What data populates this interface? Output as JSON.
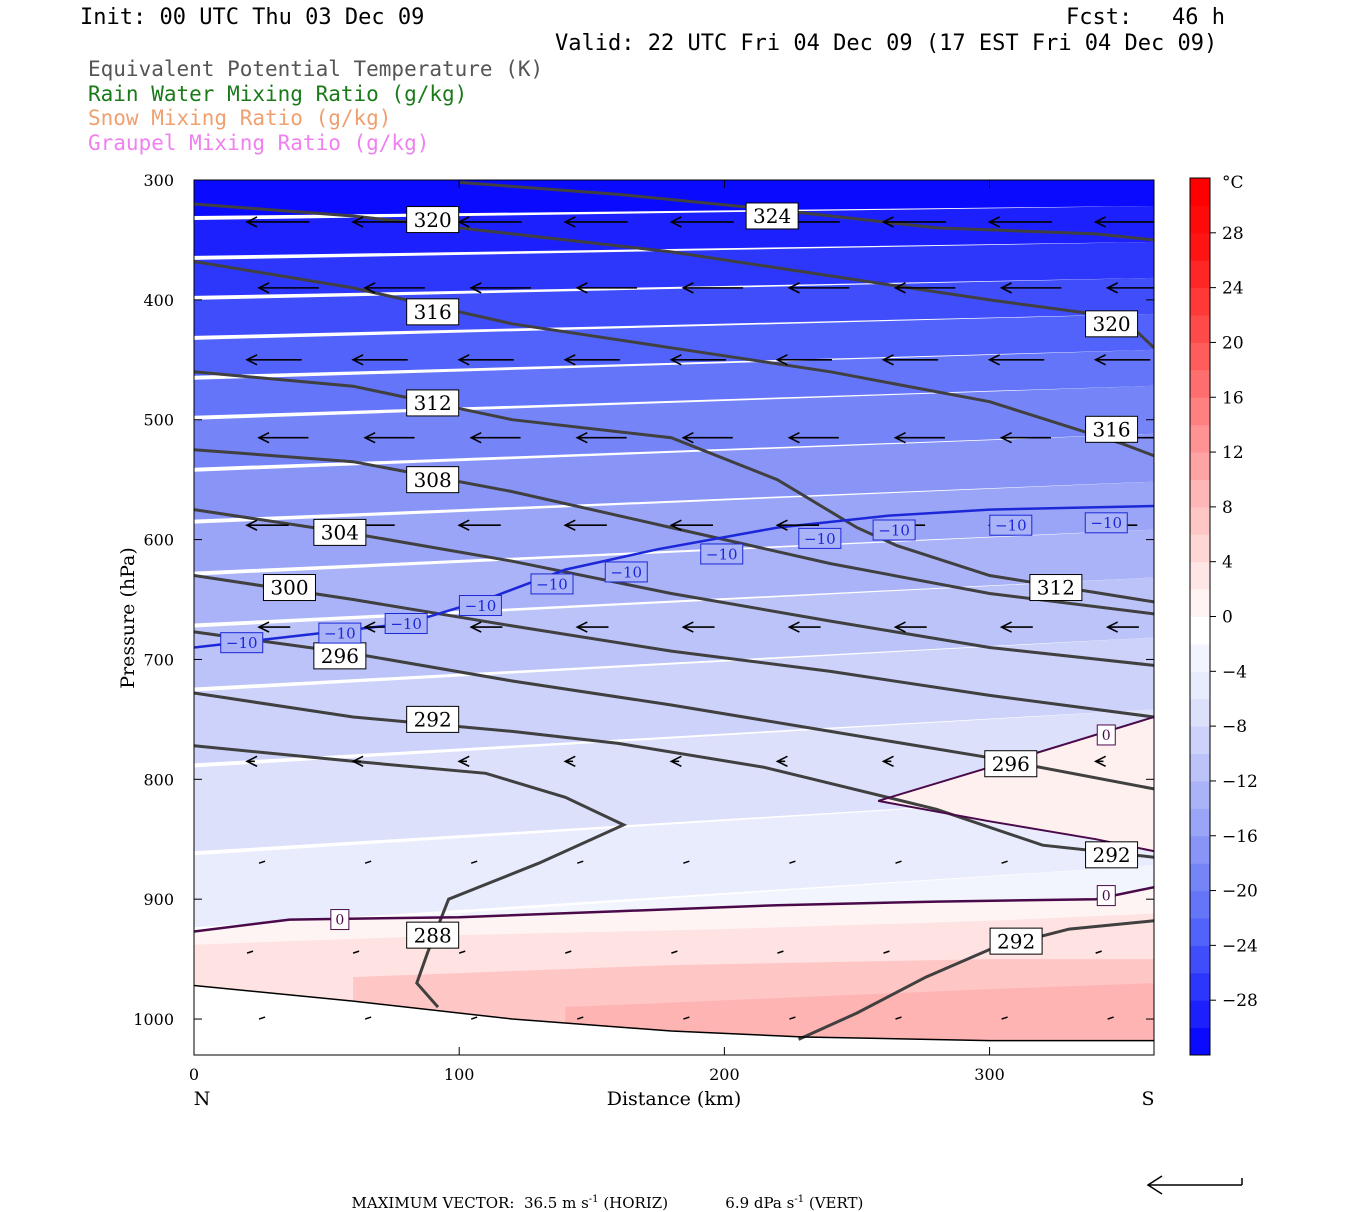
{
  "header": {
    "init": "Init: 00 UTC Thu 03 Dec 09",
    "fcst": "Fcst:   46 h",
    "valid": "Valid: 22 UTC Fri 04 Dec 09 (17 EST Fri 04 Dec 09)"
  },
  "legend": [
    {
      "label": "Equivalent Potential Temperature (K)",
      "color": "#555555"
    },
    {
      "label": "Rain Water Mixing Ratio (g/kg)",
      "color": "#1a7a1a"
    },
    {
      "label": "Snow Mixing Ratio (g/kg)",
      "color": "#f0a070"
    },
    {
      "label": "Graupel Mixing Ratio (g/kg)",
      "color": "#f080f0"
    }
  ],
  "footer": {
    "label": "MAXIMUM VECTOR:",
    "horiz_value": "36.5 m s",
    "horiz_exp": "-1",
    "horiz_tag": "(HORIZ)",
    "vert_value": "6.9 dPa s",
    "vert_exp": "-1",
    "vert_tag": "(VERT)"
  },
  "chart_data": {
    "type": "cross-section",
    "xlabel": "Distance (km)",
    "ylabel": "Pressure (hPa)",
    "xlim": [
      0,
      362
    ],
    "ylim": [
      1030,
      300
    ],
    "x_ticks": [
      0,
      100,
      200,
      300
    ],
    "y_ticks": [
      300,
      400,
      500,
      600,
      700,
      800,
      900,
      1000
    ],
    "end_labels": {
      "left": "N",
      "right": "S"
    },
    "colorbar": {
      "unit": "°C",
      "tick_labels": [
        "28",
        "24",
        "20",
        "16",
        "12",
        "8",
        "4",
        "0",
        "−4",
        "−8",
        "−12",
        "−16",
        "−20",
        "−24",
        "−28"
      ],
      "tick_values": [
        28,
        24,
        20,
        16,
        12,
        8,
        4,
        0,
        -4,
        -8,
        -12,
        -16,
        -20,
        -24,
        -28
      ],
      "range": [
        -32,
        32
      ],
      "colors": [
        "#0a0aff",
        "#1b20fd",
        "#2d37fc",
        "#3f4dfb",
        "#5163fa",
        "#6475f9",
        "#7585f8",
        "#8895f7",
        "#9aa5f7",
        "#aab3f8",
        "#bcc3f8",
        "#ccd2fa",
        "#dce0fb",
        "#e9ecfd",
        "#f2f4fe",
        "#ffffff",
        "#fff4f4",
        "#ffe6e6",
        "#ffd6d6",
        "#ffc6c6",
        "#ffb6b6",
        "#ffa4a4",
        "#ff9292",
        "#ff8080",
        "#ff6e6e",
        "#ff5c5c",
        "#ff4a4a",
        "#ff3838",
        "#ff2626",
        "#ff1414",
        "#ff0a0a",
        "#ff0000"
      ]
    },
    "theta_e": [
      {
        "name": "288",
        "label_pos": [
          90,
          930
        ],
        "points": [
          [
            92,
            990
          ],
          [
            84,
            970
          ],
          [
            88,
            945
          ],
          [
            96,
            900
          ],
          [
            130,
            870
          ],
          [
            162,
            838
          ],
          [
            140,
            815
          ],
          [
            110,
            795
          ],
          [
            60,
            785
          ],
          [
            0,
            772
          ]
        ]
      },
      {
        "name": "292",
        "label_pos": [
          90,
          750
        ],
        "points": [
          [
            0,
            728
          ],
          [
            60,
            748
          ],
          [
            120,
            760
          ],
          [
            160,
            770
          ],
          [
            215,
            790
          ],
          [
            280,
            825
          ],
          [
            320,
            855
          ],
          [
            362,
            865
          ]
        ]
      },
      {
        "name": "292",
        "label_pos": [
          310,
          935
        ],
        "points": [
          [
            228,
            1017
          ],
          [
            250,
            995
          ],
          [
            276,
            965
          ],
          [
            300,
            942
          ],
          [
            330,
            925
          ],
          [
            362,
            918
          ]
        ]
      },
      {
        "name": "296",
        "label_pos": [
          55,
          697
        ],
        "points": [
          [
            0,
            677
          ],
          [
            60,
            695
          ],
          [
            120,
            718
          ],
          [
            180,
            738
          ],
          [
            240,
            760
          ],
          [
            300,
            782
          ],
          [
            362,
            808
          ]
        ]
      },
      {
        "name": "300",
        "label_pos": [
          36,
          640
        ],
        "points": [
          [
            0,
            630
          ],
          [
            60,
            650
          ],
          [
            120,
            672
          ],
          [
            180,
            693
          ],
          [
            240,
            710
          ],
          [
            300,
            730
          ],
          [
            362,
            748
          ]
        ]
      },
      {
        "name": "304",
        "label_pos": [
          55,
          594
        ],
        "points": [
          [
            0,
            575
          ],
          [
            60,
            595
          ],
          [
            120,
            618
          ],
          [
            180,
            645
          ],
          [
            240,
            668
          ],
          [
            300,
            690
          ],
          [
            362,
            705
          ]
        ]
      },
      {
        "name": "308",
        "label_pos": [
          90,
          550
        ],
        "points": [
          [
            0,
            525
          ],
          [
            60,
            535
          ],
          [
            120,
            560
          ],
          [
            180,
            590
          ],
          [
            240,
            620
          ],
          [
            300,
            645
          ],
          [
            362,
            662
          ]
        ]
      },
      {
        "name": "312",
        "label_pos": [
          90,
          486
        ],
        "points": [
          [
            0,
            460
          ],
          [
            60,
            472
          ],
          [
            120,
            500
          ],
          [
            180,
            515
          ],
          [
            220,
            550
          ],
          [
            250,
            590
          ],
          [
            265,
            605
          ],
          [
            300,
            630
          ],
          [
            362,
            652
          ]
        ]
      },
      {
        "name": "316",
        "label_pos": [
          90,
          410
        ],
        "points": [
          [
            0,
            368
          ],
          [
            60,
            390
          ],
          [
            120,
            420
          ],
          [
            180,
            440
          ],
          [
            240,
            460
          ],
          [
            300,
            485
          ],
          [
            350,
            520
          ],
          [
            362,
            530
          ]
        ]
      },
      {
        "name": "320",
        "label_pos": [
          90,
          333
        ],
        "points": [
          [
            0,
            320
          ],
          [
            60,
            330
          ],
          [
            120,
            345
          ],
          [
            180,
            360
          ],
          [
            240,
            380
          ],
          [
            300,
            400
          ],
          [
            350,
            415
          ],
          [
            362,
            440
          ]
        ]
      },
      {
        "name": "324",
        "label_pos": [
          218,
          330
        ],
        "points": [
          [
            100,
            302
          ],
          [
            160,
            312
          ],
          [
            220,
            325
          ],
          [
            280,
            340
          ],
          [
            340,
            345
          ],
          [
            362,
            350
          ]
        ]
      }
    ],
    "theta_e_extra_labels": [
      {
        "name": "320",
        "label_pos": [
          346,
          420
        ]
      },
      {
        "name": "316",
        "label_pos": [
          346,
          508
        ]
      },
      {
        "name": "312",
        "label_pos": [
          325,
          640
        ]
      },
      {
        "name": "296",
        "label_pos": [
          308,
          787
        ]
      },
      {
        "name": "292",
        "label_pos": [
          346,
          863
        ]
      }
    ],
    "isotherm_minus10": {
      "name": "−10",
      "points": [
        [
          0,
          690
        ],
        [
          40,
          680
        ],
        [
          80,
          670
        ],
        [
          110,
          650
        ],
        [
          140,
          625
        ],
        [
          175,
          608
        ],
        [
          220,
          590
        ],
        [
          262,
          580
        ],
        [
          300,
          575
        ],
        [
          362,
          572
        ]
      ],
      "labels": [
        [
          18,
          686
        ],
        [
          55,
          678
        ],
        [
          80,
          670
        ],
        [
          108,
          655
        ],
        [
          135,
          637
        ],
        [
          163,
          627
        ],
        [
          199,
          612
        ],
        [
          236,
          599
        ],
        [
          264,
          592
        ],
        [
          308,
          588
        ],
        [
          344,
          586
        ]
      ]
    },
    "isotherm_0": {
      "name": "0",
      "points": [
        [
          0,
          927
        ],
        [
          36,
          917
        ],
        [
          100,
          915
        ],
        [
          160,
          910
        ],
        [
          220,
          905
        ],
        [
          280,
          902
        ],
        [
          340,
          900
        ],
        [
          362,
          890
        ]
      ],
      "labels": [
        [
          55,
          917
        ],
        [
          344,
          897
        ]
      ],
      "wedge": [
        [
          362,
          748
        ],
        [
          300,
          790
        ],
        [
          258,
          818
        ],
        [
          300,
          835
        ],
        [
          340,
          850
        ],
        [
          362,
          860
        ]
      ],
      "wedge_label": [
        344,
        763
      ]
    },
    "freezing_region_top": [
      [
        0,
        938
      ],
      [
        100,
        930
      ],
      [
        200,
        925
      ],
      [
        300,
        918
      ],
      [
        362,
        912
      ]
    ],
    "ground": [
      [
        0,
        972
      ],
      [
        60,
        985
      ],
      [
        120,
        1000
      ],
      [
        180,
        1010
      ],
      [
        230,
        1015
      ],
      [
        300,
        1018
      ],
      [
        362,
        1018
      ]
    ],
    "wind_vectors": {
      "levels": [
        335,
        390,
        450,
        515,
        588,
        673,
        785,
        870,
        945,
        1000
      ],
      "x": [
        20,
        60,
        100,
        140,
        180,
        220,
        260,
        300,
        340
      ],
      "lengths": [
        24,
        23,
        21,
        19,
        16,
        12,
        3,
        2,
        2,
        1
      ]
    }
  }
}
